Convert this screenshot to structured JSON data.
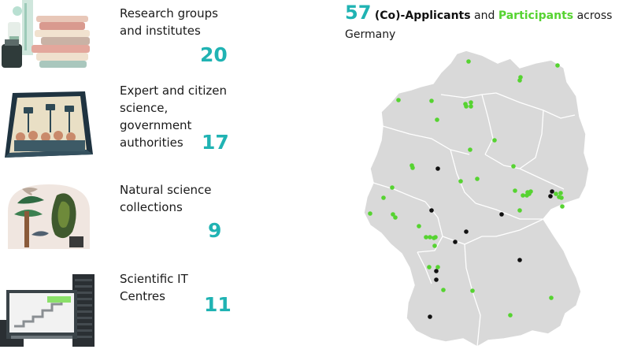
{
  "categories": [
    {
      "label_lines": [
        "Research groups",
        "and institutes"
      ],
      "count": "20",
      "icon": "books-and-lab-glassware-illustration"
    },
    {
      "label_lines": [
        "Expert and citizen",
        "science,",
        "government",
        "authorities"
      ],
      "count": "17",
      "icon": "tablet-crowd-illustration"
    },
    {
      "label_lines": [
        "Natural science",
        "collections"
      ],
      "count": "9",
      "icon": "natural-collection-illustration"
    },
    {
      "label_lines": [
        "Scientific IT",
        "Centres"
      ],
      "count": "11",
      "icon": "server-rack-illustration"
    }
  ],
  "headline": {
    "number": "57",
    "applicants": "(Co)-Applicants",
    "and": "and",
    "participants": "Participants",
    "rest": "across Germany"
  },
  "colors": {
    "teal": "#20b3b3",
    "green": "#56d331",
    "black": "#111111",
    "map_fill": "#d9d9d9",
    "map_border": "#ffffff"
  },
  "map": {
    "region": "Germany",
    "applicants": [
      [
        556,
        152
      ],
      [
        701,
        181
      ],
      [
        699,
        187
      ],
      [
        548,
        205
      ],
      [
        637,
        210
      ],
      [
        592,
        232
      ],
      [
        578,
        245
      ],
      [
        660,
        268
      ],
      [
        554,
        282
      ],
      [
        554,
        293
      ],
      [
        645,
        400
      ],
      [
        546,
        340
      ]
    ],
    "participants": [
      [
        595,
        16
      ],
      [
        708,
        21
      ],
      [
        661,
        36
      ],
      [
        660,
        40
      ],
      [
        506,
        65
      ],
      [
        548,
        66
      ],
      [
        598,
        68
      ],
      [
        591,
        70
      ],
      [
        592,
        73
      ],
      [
        598,
        73
      ],
      [
        555,
        90
      ],
      [
        628,
        116
      ],
      [
        597,
        128
      ],
      [
        523,
        148
      ],
      [
        524,
        151
      ],
      [
        606,
        165
      ],
      [
        585,
        168
      ],
      [
        652,
        149
      ],
      [
        706,
        184
      ],
      [
        710,
        188
      ],
      [
        712,
        183
      ],
      [
        713,
        189
      ],
      [
        487,
        189
      ],
      [
        498,
        176
      ],
      [
        670,
        182
      ],
      [
        672,
        184
      ],
      [
        674,
        181
      ],
      [
        664,
        186
      ],
      [
        669,
        186
      ],
      [
        654,
        180
      ],
      [
        499,
        210
      ],
      [
        502,
        214
      ],
      [
        470,
        209
      ],
      [
        660,
        205
      ],
      [
        714,
        200
      ],
      [
        541,
        239
      ],
      [
        546,
        239
      ],
      [
        553,
        239
      ],
      [
        551,
        240
      ],
      [
        532,
        225
      ],
      [
        552,
        250
      ],
      [
        556,
        277
      ],
      [
        563,
        306
      ],
      [
        545,
        277
      ],
      [
        648,
        338
      ],
      [
        700,
        316
      ],
      [
        600,
        307
      ]
    ]
  }
}
